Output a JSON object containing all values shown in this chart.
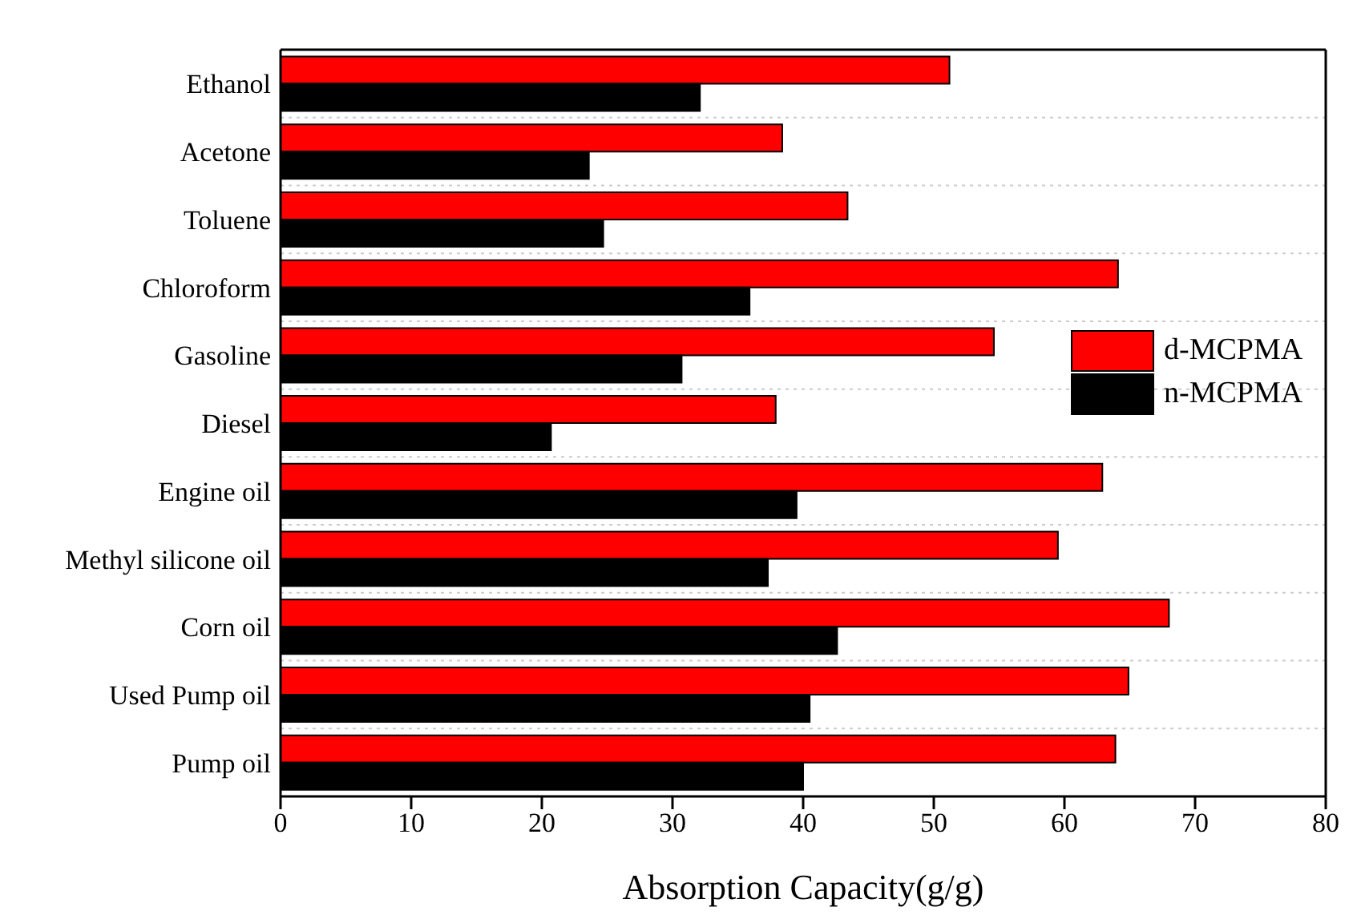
{
  "chart_data": {
    "type": "bar",
    "orientation": "horizontal",
    "xlabel": "Absorption Capacity(g/g)",
    "categories": [
      "Ethanol",
      "Acetone",
      "Toluene",
      "Chloroform",
      "Gasoline",
      "Diesel",
      "Engine oil",
      "Methyl silicone oil",
      "Corn oil",
      "Used Pump oil",
      "Pump oil"
    ],
    "series": [
      {
        "name": "d-MCPMA",
        "color": "#ff0000",
        "values": [
          51.2,
          38.4,
          43.4,
          64.1,
          54.6,
          37.9,
          62.9,
          59.5,
          68.0,
          64.9,
          63.9
        ]
      },
      {
        "name": "n-MCPMA",
        "color": "#000000",
        "values": [
          32.1,
          23.6,
          24.7,
          35.9,
          30.7,
          20.7,
          39.5,
          37.3,
          42.6,
          40.5,
          40.0
        ]
      }
    ],
    "xlim": [
      0,
      80
    ],
    "xticks": [
      0,
      10,
      20,
      30,
      40,
      50,
      60,
      70,
      80
    ],
    "grid": "y",
    "legend": "right"
  }
}
